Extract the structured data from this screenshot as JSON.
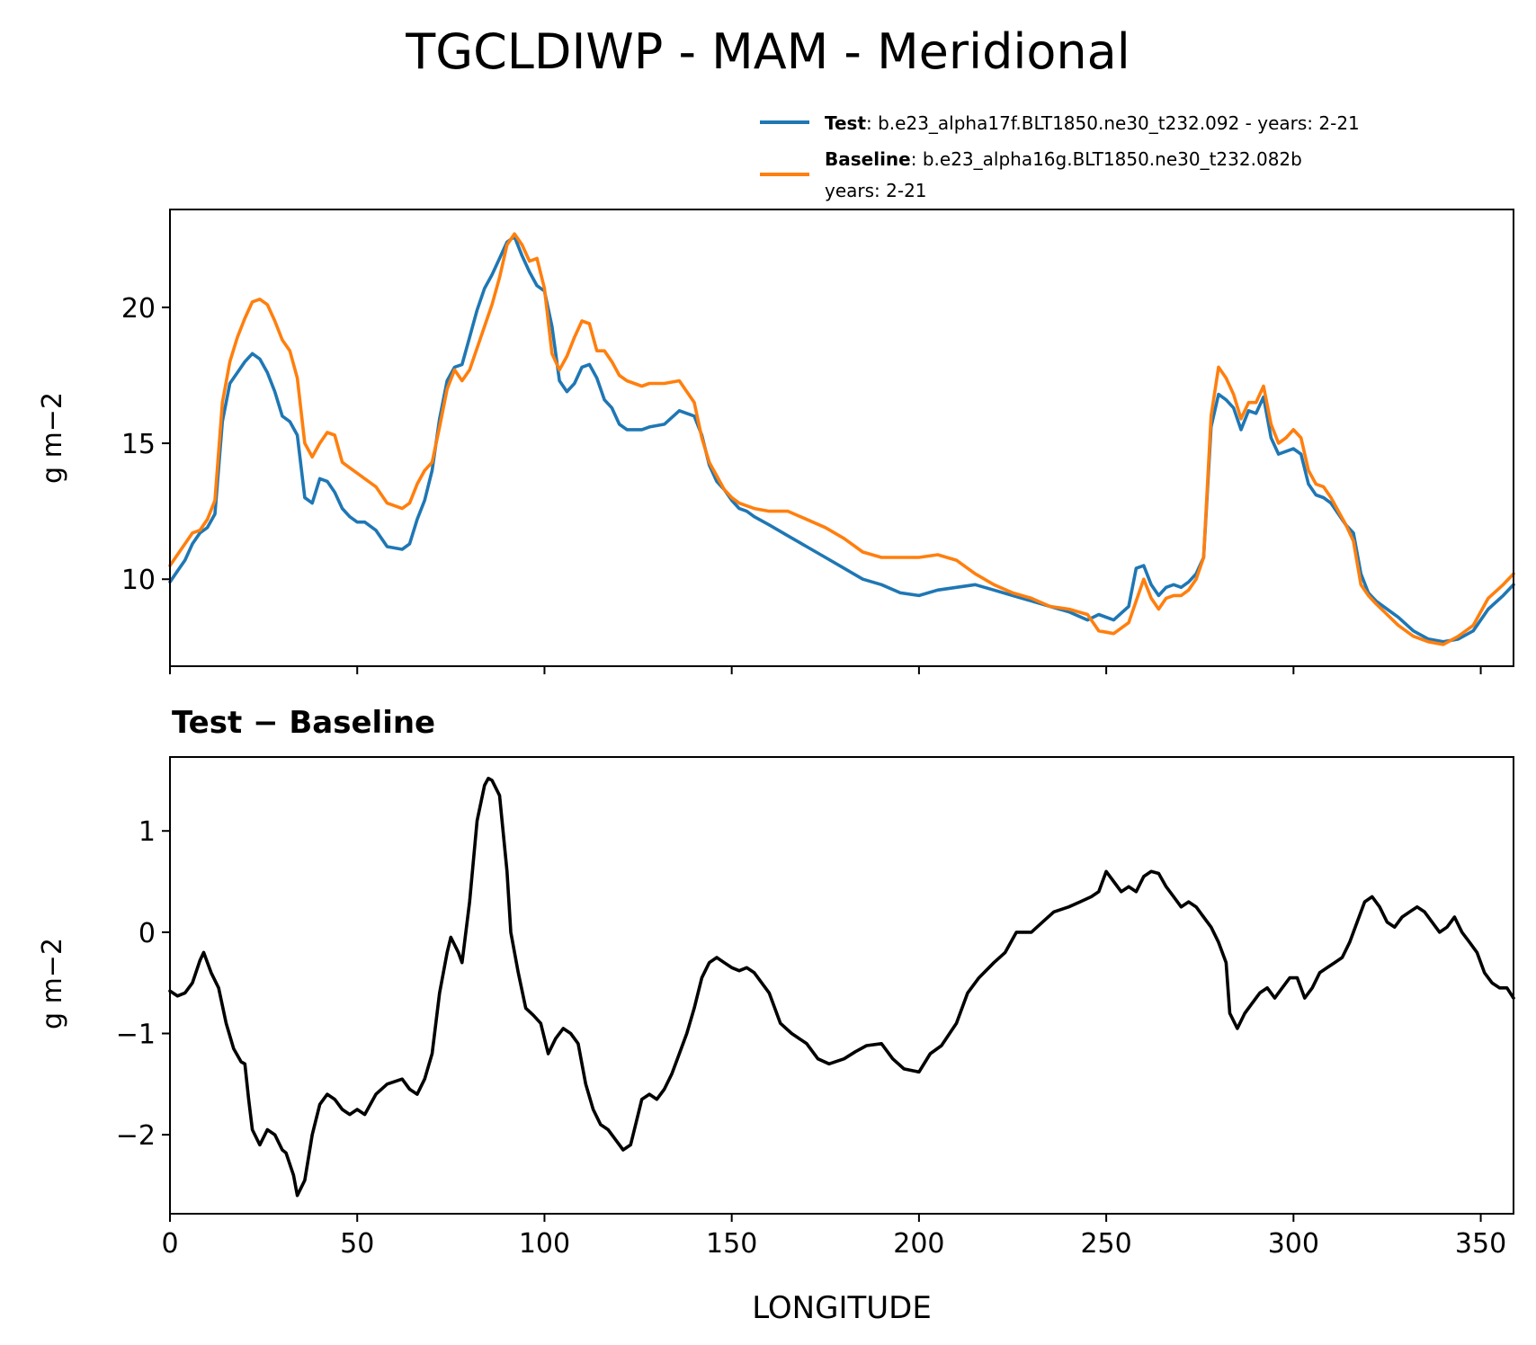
{
  "figure_title": "TGCLDIWP - MAM - Meridional",
  "colors": {
    "test": "#1f77b4",
    "baseline": "#ff7f0e",
    "diff": "#000000"
  },
  "legend": {
    "test_label": "Test",
    "test_text": ": b.e23_alpha17f.BLT1850.ne30_t232.092 - years: 2-21",
    "baseline_label": "Baseline",
    "baseline_text": ": b.e23_alpha16g.BLT1850.ne30_t232.082b",
    "baseline_text2": "years: 2-21"
  },
  "chart_data": [
    {
      "type": "line",
      "panel": "top",
      "title": "",
      "xlabel": "",
      "ylabel": "g m−2",
      "xlim": [
        0,
        358.75
      ],
      "ylim": [
        6.8,
        23.6
      ],
      "yticks": [
        10,
        15,
        20
      ],
      "ytick_labels": [
        "10",
        "15",
        "20"
      ],
      "xticks": [
        0,
        50,
        100,
        150,
        200,
        250,
        300,
        350
      ],
      "series": [
        {
          "name": "Test",
          "x": [
            0,
            2,
            4,
            6,
            8,
            10,
            12,
            14,
            16,
            18,
            20,
            22,
            24,
            26,
            28,
            30,
            32,
            34,
            36,
            38,
            40,
            42,
            44,
            46,
            48,
            50,
            52,
            55,
            58,
            62,
            64,
            66,
            68,
            70,
            72,
            74,
            76,
            78,
            80,
            82,
            84,
            86,
            88,
            90,
            92,
            94,
            96,
            98,
            100,
            102,
            104,
            106,
            108,
            110,
            112,
            114,
            116,
            118,
            120,
            122,
            124,
            126,
            128,
            132,
            136,
            140,
            142,
            144,
            146,
            148,
            150,
            152,
            154,
            156,
            160,
            165,
            170,
            175,
            180,
            185,
            190,
            195,
            200,
            205,
            210,
            215,
            220,
            225,
            230,
            235,
            240,
            245,
            248,
            252,
            256,
            258,
            260,
            262,
            264,
            266,
            268,
            270,
            272,
            274,
            276,
            278,
            280,
            282,
            284,
            286,
            288,
            290,
            292,
            294,
            296,
            298,
            300,
            302,
            304,
            306,
            308,
            310,
            312,
            314,
            316,
            318,
            320,
            322,
            325,
            328,
            332,
            336,
            340,
            344,
            348,
            352,
            356,
            358.75
          ],
          "values": [
            9.9,
            10.3,
            10.7,
            11.3,
            11.7,
            11.9,
            12.4,
            15.8,
            17.2,
            17.6,
            18.0,
            18.3,
            18.1,
            17.6,
            16.9,
            16.0,
            15.8,
            15.3,
            13.0,
            12.8,
            13.7,
            13.6,
            13.2,
            12.6,
            12.3,
            12.1,
            12.1,
            11.8,
            11.2,
            11.1,
            11.3,
            12.2,
            12.9,
            14.0,
            15.9,
            17.3,
            17.8,
            17.9,
            18.9,
            19.9,
            20.7,
            21.2,
            21.8,
            22.4,
            22.6,
            21.9,
            21.3,
            20.8,
            20.6,
            19.3,
            17.3,
            16.9,
            17.2,
            17.8,
            17.9,
            17.4,
            16.6,
            16.3,
            15.7,
            15.5,
            15.5,
            15.5,
            15.6,
            15.7,
            16.2,
            16.0,
            15.3,
            14.2,
            13.6,
            13.3,
            12.9,
            12.6,
            12.5,
            12.3,
            12.0,
            11.6,
            11.2,
            10.8,
            10.4,
            10.0,
            9.8,
            9.5,
            9.4,
            9.6,
            9.7,
            9.8,
            9.6,
            9.4,
            9.2,
            9.0,
            8.8,
            8.5,
            8.7,
            8.5,
            9.0,
            10.4,
            10.5,
            9.8,
            9.4,
            9.7,
            9.8,
            9.7,
            9.9,
            10.2,
            10.8,
            15.6,
            16.8,
            16.6,
            16.3,
            15.5,
            16.2,
            16.1,
            16.7,
            15.2,
            14.6,
            14.7,
            14.8,
            14.6,
            13.5,
            13.1,
            13.0,
            12.8,
            12.4,
            12.0,
            11.7,
            10.2,
            9.5,
            9.2,
            8.9,
            8.6,
            8.1,
            7.8,
            7.7,
            7.8,
            8.1,
            8.9,
            9.4,
            9.8
          ]
        },
        {
          "name": "Baseline",
          "x": [
            0,
            2,
            4,
            6,
            8,
            10,
            12,
            14,
            16,
            18,
            20,
            22,
            24,
            26,
            28,
            30,
            32,
            34,
            36,
            38,
            40,
            42,
            44,
            46,
            48,
            50,
            52,
            55,
            58,
            62,
            64,
            66,
            68,
            70,
            72,
            74,
            76,
            78,
            80,
            82,
            84,
            86,
            88,
            90,
            92,
            94,
            96,
            98,
            100,
            102,
            104,
            106,
            108,
            110,
            112,
            114,
            116,
            118,
            120,
            122,
            124,
            126,
            128,
            132,
            136,
            140,
            142,
            144,
            146,
            148,
            150,
            152,
            154,
            156,
            160,
            165,
            170,
            175,
            180,
            185,
            190,
            195,
            200,
            205,
            210,
            215,
            220,
            225,
            230,
            235,
            240,
            245,
            248,
            252,
            256,
            258,
            260,
            262,
            264,
            266,
            268,
            270,
            272,
            274,
            276,
            278,
            280,
            282,
            284,
            286,
            288,
            290,
            292,
            294,
            296,
            298,
            300,
            302,
            304,
            306,
            308,
            310,
            312,
            314,
            316,
            318,
            320,
            322,
            325,
            328,
            332,
            336,
            340,
            344,
            348,
            352,
            356,
            358.75
          ],
          "values": [
            10.5,
            10.9,
            11.3,
            11.7,
            11.8,
            12.2,
            12.9,
            16.5,
            18.0,
            18.9,
            19.6,
            20.2,
            20.3,
            20.1,
            19.5,
            18.8,
            18.4,
            17.4,
            15.0,
            14.5,
            15.0,
            15.4,
            15.3,
            14.3,
            14.1,
            13.9,
            13.7,
            13.4,
            12.8,
            12.6,
            12.8,
            13.5,
            14.0,
            14.3,
            15.6,
            17.0,
            17.7,
            17.3,
            17.7,
            18.5,
            19.3,
            20.1,
            21.1,
            22.3,
            22.7,
            22.3,
            21.7,
            21.8,
            20.7,
            18.3,
            17.7,
            18.2,
            18.9,
            19.5,
            19.4,
            18.4,
            18.4,
            18.0,
            17.5,
            17.3,
            17.2,
            17.1,
            17.2,
            17.2,
            17.3,
            16.5,
            15.2,
            14.3,
            13.8,
            13.3,
            13.0,
            12.8,
            12.7,
            12.6,
            12.5,
            12.5,
            12.2,
            11.9,
            11.5,
            11.0,
            10.8,
            10.8,
            10.8,
            10.9,
            10.7,
            10.2,
            9.8,
            9.5,
            9.3,
            9.0,
            8.9,
            8.7,
            8.1,
            8.0,
            8.4,
            9.2,
            10.0,
            9.3,
            8.9,
            9.3,
            9.4,
            9.4,
            9.6,
            10.0,
            10.8,
            16.0,
            17.8,
            17.4,
            16.8,
            15.9,
            16.5,
            16.5,
            17.1,
            15.7,
            15.0,
            15.2,
            15.5,
            15.2,
            14.0,
            13.5,
            13.4,
            13.0,
            12.5,
            12.0,
            11.4,
            9.8,
            9.4,
            9.1,
            8.7,
            8.3,
            7.9,
            7.7,
            7.6,
            7.9,
            8.3,
            9.3,
            9.8,
            10.2
          ]
        }
      ]
    },
    {
      "type": "line",
      "panel": "bottom",
      "title": "Test − Baseline",
      "xlabel": "LONGITUDE",
      "ylabel": "g m−2",
      "xlim": [
        0,
        358.75
      ],
      "ylim": [
        -2.78,
        1.73
      ],
      "yticks": [
        -2,
        -1,
        0,
        1
      ],
      "ytick_labels": [
        "−2",
        "−1",
        "0",
        "1"
      ],
      "xticks": [
        0,
        50,
        100,
        150,
        200,
        250,
        300,
        350
      ],
      "xtick_labels": [
        "0",
        "50",
        "100",
        "150",
        "200",
        "250",
        "300",
        "350"
      ],
      "series": [
        {
          "name": "Test − Baseline",
          "x": [
            0,
            2,
            4,
            6,
            8,
            9,
            11,
            13,
            15,
            17,
            19,
            20,
            21,
            22,
            24,
            26,
            28,
            30,
            31,
            33,
            34,
            36,
            38,
            40,
            42,
            44,
            46,
            48,
            50,
            52,
            55,
            58,
            62,
            64,
            66,
            68,
            70,
            72,
            74,
            75,
            77,
            78,
            80,
            82,
            84,
            85,
            86,
            88,
            90,
            91,
            93,
            95,
            97,
            99,
            101,
            103,
            105,
            107,
            109,
            111,
            113,
            115,
            117,
            119,
            121,
            123,
            124,
            126,
            128,
            130,
            132,
            134,
            136,
            138,
            140,
            142,
            144,
            146,
            148,
            150,
            152,
            154,
            156,
            158,
            160,
            163,
            166,
            170,
            173,
            176,
            180,
            183,
            186,
            190,
            193,
            196,
            200,
            203,
            206,
            210,
            213,
            216,
            220,
            223,
            226,
            230,
            233,
            236,
            240,
            243,
            246,
            248,
            250,
            252,
            254,
            256,
            258,
            260,
            262,
            264,
            266,
            268,
            270,
            272,
            274,
            276,
            278,
            280,
            282,
            283,
            285,
            287,
            289,
            291,
            293,
            295,
            297,
            299,
            301,
            303,
            305,
            307,
            309,
            311,
            313,
            315,
            317,
            319,
            321,
            323,
            325,
            327,
            329,
            331,
            333,
            335,
            337,
            339,
            341,
            343,
            345,
            347,
            349,
            351,
            353,
            355,
            357,
            358.75
          ],
          "values": [
            -0.58,
            -0.63,
            -0.6,
            -0.5,
            -0.28,
            -0.2,
            -0.4,
            -0.55,
            -0.9,
            -1.15,
            -1.28,
            -1.3,
            -1.65,
            -1.95,
            -2.1,
            -1.95,
            -2.0,
            -2.15,
            -2.18,
            -2.4,
            -2.6,
            -2.45,
            -2.0,
            -1.7,
            -1.6,
            -1.65,
            -1.75,
            -1.8,
            -1.75,
            -1.8,
            -1.6,
            -1.5,
            -1.45,
            -1.55,
            -1.6,
            -1.45,
            -1.2,
            -0.6,
            -0.2,
            -0.05,
            -0.2,
            -0.3,
            0.3,
            1.1,
            1.45,
            1.52,
            1.5,
            1.35,
            0.6,
            0.0,
            -0.4,
            -0.75,
            -0.82,
            -0.9,
            -1.2,
            -1.05,
            -0.95,
            -1.0,
            -1.1,
            -1.5,
            -1.75,
            -1.9,
            -1.95,
            -2.05,
            -2.15,
            -2.1,
            -1.95,
            -1.65,
            -1.6,
            -1.65,
            -1.55,
            -1.4,
            -1.2,
            -1.0,
            -0.75,
            -0.45,
            -0.3,
            -0.25,
            -0.3,
            -0.35,
            -0.38,
            -0.35,
            -0.4,
            -0.5,
            -0.6,
            -0.9,
            -1.0,
            -1.1,
            -1.25,
            -1.3,
            -1.25,
            -1.18,
            -1.12,
            -1.1,
            -1.25,
            -1.35,
            -1.38,
            -1.2,
            -1.12,
            -0.9,
            -0.6,
            -0.45,
            -0.3,
            -0.2,
            0.0,
            0.0,
            0.1,
            0.2,
            0.25,
            0.3,
            0.35,
            0.4,
            0.6,
            0.5,
            0.4,
            0.45,
            0.4,
            0.55,
            0.6,
            0.58,
            0.45,
            0.35,
            0.25,
            0.3,
            0.25,
            0.15,
            0.05,
            -0.1,
            -0.3,
            -0.8,
            -0.95,
            -0.8,
            -0.7,
            -0.6,
            -0.55,
            -0.65,
            -0.55,
            -0.45,
            -0.45,
            -0.65,
            -0.55,
            -0.4,
            -0.35,
            -0.3,
            -0.25,
            -0.1,
            0.1,
            0.3,
            0.35,
            0.25,
            0.1,
            0.05,
            0.15,
            0.2,
            0.25,
            0.2,
            0.1,
            0.0,
            0.05,
            0.15,
            0.0,
            -0.1,
            -0.2,
            -0.4,
            -0.5,
            -0.55,
            -0.55,
            -0.65
          ]
        }
      ]
    }
  ]
}
